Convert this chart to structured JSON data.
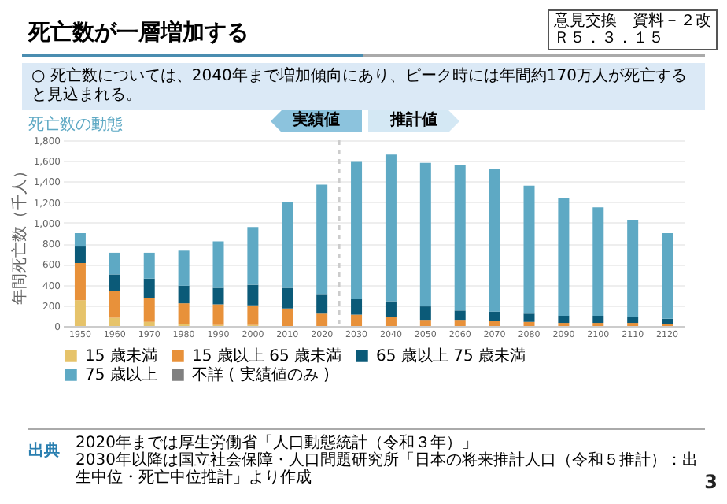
{
  "chart_data": {
    "type": "bar",
    "title": "死亡数が一層増加する",
    "subtitle": "死亡数の動態",
    "ylabel": "年間死亡数（千人）",
    "x": [
      1950,
      1960,
      1970,
      1980,
      1990,
      2000,
      2010,
      2020,
      2030,
      2040,
      2050,
      2060,
      2070,
      2080,
      2090,
      2100,
      2110,
      2120
    ],
    "xlim": [
      1945,
      2125
    ],
    "xticks": [
      1950,
      1960,
      1970,
      1980,
      1990,
      2000,
      2010,
      2020,
      2030,
      2040,
      2050,
      2060,
      2070,
      2080,
      2090,
      2100,
      2110,
      2120
    ],
    "ylim": [
      0,
      1800
    ],
    "yticks": [
      0,
      200,
      400,
      600,
      800,
      {
        "value": 1000,
        "label": "1,000"
      },
      {
        "value": 1200,
        "label": "1,200"
      },
      {
        "value": 1400,
        "label": "1,400"
      },
      {
        "value": 1600,
        "label": "1,600"
      },
      {
        "value": 1800,
        "label": "1,800"
      }
    ],
    "stacked": true,
    "grid": "y",
    "legend": "bottom",
    "series": [
      {
        "name": "15 歳未満",
        "color": "#e6c36a",
        "values": [
          250,
          80,
          40,
          20,
          10,
          10,
          0,
          0,
          0,
          0,
          0,
          0,
          0,
          0,
          0,
          0,
          0,
          0
        ]
      },
      {
        "name": "15 歳以上 65 歳未満",
        "color": "#e8913a",
        "values": [
          360,
          260,
          230,
          200,
          200,
          190,
          170,
          120,
          110,
          90,
          60,
          60,
          50,
          40,
          30,
          30,
          30,
          20
        ]
      },
      {
        "name": "65 歳以上 75 歳未満",
        "color": "#0b5a78",
        "values": [
          160,
          160,
          190,
          170,
          160,
          200,
          200,
          190,
          150,
          150,
          130,
          90,
          90,
          80,
          70,
          70,
          60,
          50
        ]
      },
      {
        "name": "75 歳以上",
        "color": "#5ea9c4",
        "values": [
          130,
          210,
          250,
          340,
          450,
          560,
          830,
          1060,
          1330,
          1420,
          1390,
          1410,
          1380,
          1240,
          1140,
          1050,
          940,
          830
        ]
      },
      {
        "name": "不詳 ( 実績値のみ )",
        "color": "#808080",
        "values": [
          null,
          null,
          null,
          null,
          null,
          null,
          null,
          null,
          null,
          null,
          null,
          null,
          null,
          null,
          null,
          null,
          null,
          null
        ]
      }
    ],
    "ref_lines": [
      {
        "axis": "x",
        "value": 2025,
        "color": "#cccccc",
        "line_style": "dashed"
      }
    ],
    "annotations": [
      "○ 死亡数については、2040年まで増加傾向にあり、ピーク時には年間約170万人が死亡すると見込まれる。",
      "実績値",
      "推計値",
      "出典",
      "2020年までは厚生労働省「人口動態統計（令和３年）」",
      "2030年以降は国立社会保障・人口問題研究所「日本の将来推計人口（令和５推計）：出生中位・死亡中位推計」より作成",
      "意見交換　資料－２改",
      "Ｒ５．３．１５",
      "3"
    ]
  }
}
